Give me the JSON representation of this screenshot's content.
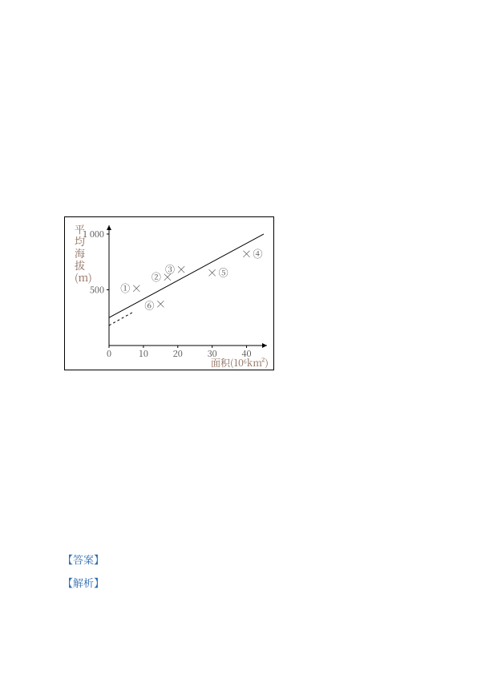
{
  "chart": {
    "type": "scatter",
    "background_color": "#ffffff",
    "axis_color": "#000000",
    "regression_line_color": "#000000",
    "data_label_color": "#4a4a4a",
    "ylabel_lines": [
      "平",
      "均",
      "海",
      "拔",
      "(m)"
    ],
    "ylabel_color": "#8a6a5a",
    "ylabel_fontsize": 13,
    "xlabel": "面积(10⁶km²)",
    "xlabel_color": "#8a6a5a",
    "xlabel_fontsize": 12,
    "xlim": [
      0,
      45
    ],
    "ylim": [
      0,
      1050
    ],
    "xticks": [
      0,
      10,
      20,
      30,
      40
    ],
    "yticks": [
      500,
      1000
    ],
    "ytick_labels": [
      "500",
      "1 000"
    ],
    "tick_fontsize": 11,
    "tick_color": "#4a4a4a",
    "line_start": [
      0,
      250
    ],
    "line_end": [
      45,
      1000
    ],
    "dash_start": [
      0,
      180
    ],
    "dash_end": [
      7,
      300
    ],
    "points": [
      {
        "id": "①",
        "x": 8,
        "y": 510
      },
      {
        "id": "②",
        "x": 17,
        "y": 610
      },
      {
        "id": "③",
        "x": 21,
        "y": 680
      },
      {
        "id": "④",
        "x": 40,
        "y": 820
      },
      {
        "id": "⑤",
        "x": 30,
        "y": 650
      },
      {
        "id": "⑥",
        "x": 15,
        "y": 370
      }
    ],
    "marker": "×",
    "marker_fontsize": 14,
    "label_fontsize": 12
  },
  "notes": {
    "answer_label": "【答案】",
    "analysis_label": "【解析】",
    "color": "#2b6cb0"
  }
}
